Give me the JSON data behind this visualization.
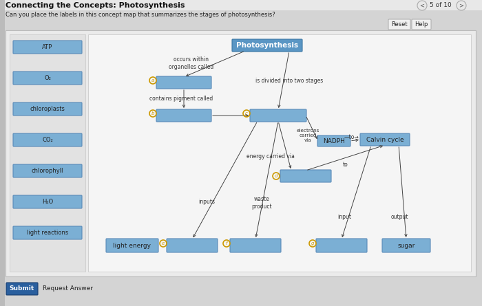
{
  "title": "Connecting the Concepts: Photosynthesis",
  "subtitle": "Can you place the labels in this concept map that summarizes the stages of photosynthesis?",
  "page_info": "5 of 10",
  "bg_page": "#d4d4d4",
  "bg_content": "#f0f0f0",
  "bg_sidebar": "#e0e0e0",
  "bg_diagram": "#f5f5f5",
  "box_blue": "#7bafd4",
  "box_blue_dark": "#5a96c4",
  "box_edge": "#5a8ab8",
  "text_dark": "#222222",
  "text_white": "#ffffff",
  "circle_color": "#cc9900",
  "sidebar_labels": [
    "ATP",
    "O₂",
    "chloroplasts",
    "CO₂",
    "chlorophyll",
    "H₂O",
    "light reactions"
  ],
  "arrow_color": "#444444",
  "submit_bg": "#2a5f9e",
  "reset_bg": "#f0f0f0",
  "nav_circle_color": "#888888"
}
